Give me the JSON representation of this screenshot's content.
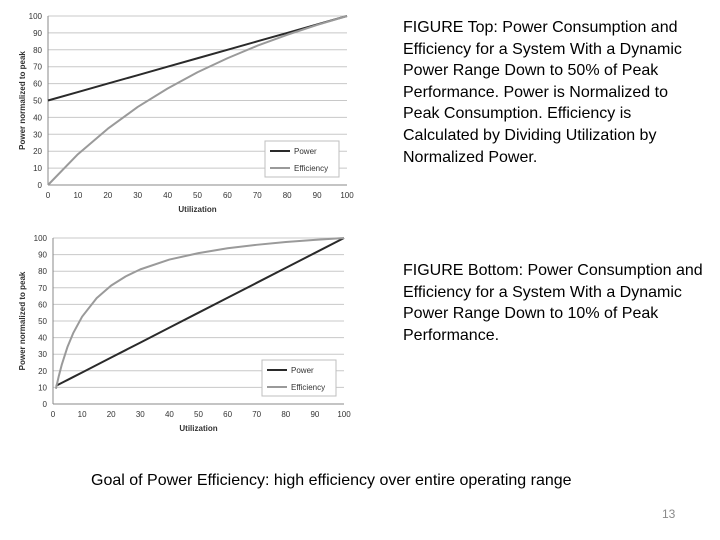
{
  "chart_data": [
    {
      "type": "line",
      "title": "",
      "xlabel": "Utilization",
      "ylabel": "Power normalized to peak",
      "xlim": [
        0,
        100
      ],
      "ylim": [
        0,
        100
      ],
      "xticks": [
        "0",
        "10",
        "20",
        "30",
        "40",
        "50",
        "60",
        "70",
        "80",
        "90",
        "100"
      ],
      "yticks": [
        "0",
        "10",
        "20",
        "30",
        "40",
        "50",
        "60",
        "70",
        "80",
        "90",
        "100"
      ],
      "grid": true,
      "legend_position": "bottom-right",
      "x": [
        0,
        10,
        20,
        30,
        40,
        50,
        60,
        70,
        80,
        90,
        100
      ],
      "series": [
        {
          "name": "Power",
          "color": "#2a2a2a",
          "values": [
            50,
            55,
            60,
            65,
            70,
            75,
            80,
            85,
            90,
            95,
            100
          ]
        },
        {
          "name": "Efficiency",
          "color": "#9a9a9a",
          "values": [
            0,
            18.2,
            33.3,
            46.2,
            57.1,
            66.7,
            75,
            82.4,
            88.9,
            94.7,
            100
          ]
        }
      ]
    },
    {
      "type": "line",
      "title": "",
      "xlabel": "Utilization",
      "ylabel": "Power normalized to peak",
      "xlim": [
        0,
        100
      ],
      "ylim": [
        0,
        100
      ],
      "xticks": [
        "0",
        "10",
        "20",
        "30",
        "40",
        "50",
        "60",
        "70",
        "80",
        "90",
        "100"
      ],
      "yticks": [
        "0",
        "10",
        "20",
        "30",
        "40",
        "50",
        "60",
        "70",
        "80",
        "90",
        "100"
      ],
      "grid": true,
      "legend_position": "bottom-right",
      "x": [
        1,
        2,
        3,
        5,
        7,
        10,
        15,
        20,
        25,
        30,
        40,
        50,
        60,
        70,
        80,
        90,
        100
      ],
      "series": [
        {
          "name": "Power",
          "color": "#2a2a2a",
          "values": [
            10.9,
            11.8,
            12.7,
            14.5,
            16.3,
            19,
            23.5,
            28,
            32.5,
            37,
            46,
            55,
            64,
            73,
            82,
            91,
            100
          ]
        },
        {
          "name": "Efficiency",
          "color": "#9a9a9a",
          "values": [
            9.2,
            16.9,
            23.6,
            34.5,
            42.9,
            52.6,
            63.8,
            71.4,
            76.9,
            81.1,
            87,
            90.9,
            93.8,
            95.9,
            97.6,
            98.9,
            100
          ]
        }
      ]
    }
  ],
  "captions": {
    "top": "FIGURE Top: Power Consumption and Efficiency for a System With a Dynamic Power Range Down to 50% of Peak Performance.  Power is Normalized to Peak Consumption. Efficiency is Calculated by Dividing Utilization by Normalized Power.",
    "bottom": "FIGURE Bottom: Power Consumption and Efficiency for a System With a Dynamic Power Range Down to 10% of Peak Performance.",
    "goal": "Goal of Power Efficiency: high efficiency over entire operating range"
  },
  "page_number": "13"
}
